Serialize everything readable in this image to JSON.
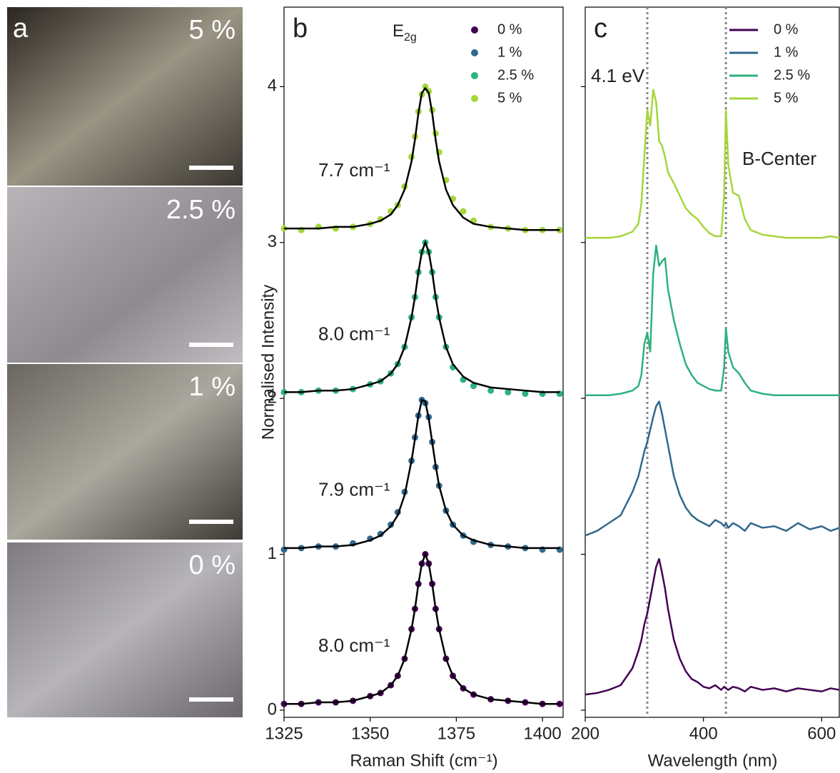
{
  "photos": {
    "panel_label": "a",
    "labels": [
      "5 %",
      "2.5 %",
      "1 %",
      "0 %"
    ]
  },
  "chart_data": [
    {
      "type": "scatter",
      "panel_label": "b",
      "xlabel": "Raman Shift (cm⁻¹)",
      "ylabel": "Normalised Intensity",
      "xlim": [
        1325,
        1406.2
      ],
      "xticks": [
        1325,
        1350,
        1375,
        1400
      ],
      "ylim": [
        -0.046,
        4.51
      ],
      "yticks": [
        0,
        1,
        2,
        3,
        4
      ],
      "legend": "upper right",
      "fit_color": "#000000",
      "peak_label": {
        "text": "E",
        "subscript": "2g"
      },
      "x": [
        1325,
        1330,
        1335,
        1340,
        1345,
        1350,
        1353,
        1356,
        1358,
        1360,
        1362,
        1363,
        1364,
        1365,
        1366,
        1367,
        1368,
        1369,
        1370,
        1372,
        1374,
        1377,
        1380,
        1385,
        1390,
        1395,
        1400,
        1405
      ],
      "series": [
        {
          "name": "0 %",
          "color": "#440154",
          "fwhm_label": "8.0 cm⁻¹",
          "values": [
            0.04,
            0.04,
            0.05,
            0.05,
            0.06,
            0.09,
            0.11,
            0.16,
            0.22,
            0.33,
            0.52,
            0.65,
            0.81,
            0.94,
            1.0,
            0.94,
            0.81,
            0.65,
            0.52,
            0.33,
            0.22,
            0.14,
            0.1,
            0.07,
            0.06,
            0.05,
            0.04,
            0.04
          ],
          "fit": [
            0.04,
            0.04,
            0.05,
            0.05,
            0.06,
            0.09,
            0.11,
            0.16,
            0.22,
            0.33,
            0.52,
            0.65,
            0.81,
            0.94,
            1.0,
            0.94,
            0.81,
            0.65,
            0.52,
            0.33,
            0.22,
            0.14,
            0.1,
            0.07,
            0.06,
            0.05,
            0.04,
            0.04
          ]
        },
        {
          "name": "1 %",
          "color": "#31688e",
          "fwhm_label": "7.9 cm⁻¹",
          "values": [
            1.03,
            1.04,
            1.05,
            1.05,
            1.07,
            1.1,
            1.13,
            1.19,
            1.27,
            1.4,
            1.6,
            1.75,
            1.89,
            1.99,
            1.97,
            1.88,
            1.72,
            1.56,
            1.44,
            1.28,
            1.19,
            1.12,
            1.08,
            1.06,
            1.05,
            1.04,
            1.03,
            1.03
          ],
          "fit": [
            1.04,
            1.04,
            1.05,
            1.05,
            1.06,
            1.09,
            1.12,
            1.18,
            1.25,
            1.38,
            1.6,
            1.74,
            1.89,
            1.99,
            1.98,
            1.87,
            1.72,
            1.57,
            1.44,
            1.28,
            1.19,
            1.12,
            1.09,
            1.06,
            1.05,
            1.04,
            1.04,
            1.04
          ]
        },
        {
          "name": "2.5 %",
          "color": "#2db27d",
          "fwhm_label": "8.0 cm⁻¹",
          "values": [
            2.04,
            2.04,
            2.05,
            2.05,
            2.06,
            2.09,
            2.11,
            2.16,
            2.22,
            2.33,
            2.52,
            2.65,
            2.81,
            2.94,
            3.0,
            2.94,
            2.81,
            2.65,
            2.52,
            2.33,
            2.2,
            2.12,
            2.08,
            2.05,
            2.04,
            2.03,
            2.03,
            2.03
          ],
          "fit": [
            2.04,
            2.04,
            2.05,
            2.05,
            2.06,
            2.09,
            2.11,
            2.16,
            2.22,
            2.33,
            2.52,
            2.65,
            2.81,
            2.94,
            3.0,
            2.94,
            2.81,
            2.65,
            2.52,
            2.33,
            2.22,
            2.14,
            2.1,
            2.07,
            2.06,
            2.05,
            2.04,
            2.04
          ]
        },
        {
          "name": "5 %",
          "color": "#a5d63a",
          "fwhm_label": "7.7 cm⁻¹",
          "values": [
            3.09,
            3.08,
            3.1,
            3.09,
            3.1,
            3.12,
            3.15,
            3.2,
            3.24,
            3.36,
            3.55,
            3.68,
            3.84,
            3.95,
            4.0,
            3.97,
            3.85,
            3.7,
            3.58,
            3.4,
            3.28,
            3.2,
            3.14,
            3.1,
            3.09,
            3.08,
            3.08,
            3.08
          ],
          "fit": [
            3.09,
            3.09,
            3.09,
            3.1,
            3.1,
            3.12,
            3.14,
            3.18,
            3.24,
            3.34,
            3.52,
            3.66,
            3.83,
            3.96,
            3.99,
            3.96,
            3.83,
            3.66,
            3.52,
            3.34,
            3.24,
            3.16,
            3.12,
            3.1,
            3.09,
            3.08,
            3.08,
            3.08
          ]
        }
      ]
    },
    {
      "type": "line",
      "panel_label": "c",
      "xlabel": "Wavelength (nm)",
      "xlim": [
        200,
        631
      ],
      "xticks": [
        200,
        400,
        600
      ],
      "ylim": [
        -0.046,
        4.51
      ],
      "yticks": [
        0,
        1,
        2,
        3,
        4
      ],
      "show_ytick_labels": false,
      "legend": "upper right",
      "vlines": [
        {
          "value": 305,
          "label": "4.1 eV"
        },
        {
          "value": 438,
          "label": "B-Center"
        }
      ],
      "x": [
        200,
        220,
        240,
        260,
        280,
        290,
        295,
        300,
        305,
        310,
        315,
        320,
        325,
        330,
        335,
        340,
        350,
        360,
        370,
        380,
        390,
        400,
        410,
        420,
        430,
        435,
        438,
        442,
        450,
        460,
        470,
        480,
        500,
        520,
        540,
        560,
        580,
        600,
        615,
        630
      ],
      "series": [
        {
          "name": "0 %",
          "color": "#440154",
          "values": [
            0.1,
            0.11,
            0.13,
            0.16,
            0.27,
            0.38,
            0.45,
            0.55,
            0.62,
            0.72,
            0.82,
            0.92,
            0.97,
            0.88,
            0.78,
            0.65,
            0.45,
            0.33,
            0.25,
            0.2,
            0.18,
            0.15,
            0.14,
            0.16,
            0.13,
            0.15,
            0.14,
            0.13,
            0.15,
            0.14,
            0.12,
            0.15,
            0.13,
            0.14,
            0.12,
            0.14,
            0.13,
            0.12,
            0.14,
            0.13
          ]
        },
        {
          "name": "1 %",
          "color": "#31688e",
          "values": [
            1.12,
            1.15,
            1.2,
            1.25,
            1.4,
            1.5,
            1.58,
            1.66,
            1.72,
            1.8,
            1.88,
            1.95,
            1.98,
            1.9,
            1.8,
            1.7,
            1.5,
            1.38,
            1.3,
            1.25,
            1.22,
            1.2,
            1.18,
            1.22,
            1.2,
            1.18,
            1.2,
            1.17,
            1.2,
            1.18,
            1.15,
            1.2,
            1.17,
            1.18,
            1.15,
            1.2,
            1.16,
            1.18,
            1.15,
            1.17
          ]
        },
        {
          "name": "2.5 %",
          "color": "#2db27d",
          "values": [
            2.02,
            2.02,
            2.02,
            2.03,
            2.05,
            2.08,
            2.15,
            2.35,
            2.42,
            2.3,
            2.8,
            2.98,
            2.85,
            2.88,
            2.9,
            2.7,
            2.5,
            2.35,
            2.22,
            2.15,
            2.1,
            2.08,
            2.06,
            2.05,
            2.05,
            2.2,
            2.45,
            2.3,
            2.2,
            2.16,
            2.1,
            2.05,
            2.03,
            2.02,
            2.02,
            2.02,
            2.02,
            2.02,
            2.02,
            2.02
          ]
        },
        {
          "name": "5 %",
          "color": "#a5d63a",
          "values": [
            3.03,
            3.03,
            3.03,
            3.04,
            3.07,
            3.12,
            3.25,
            3.55,
            3.85,
            3.75,
            3.98,
            3.9,
            3.65,
            3.62,
            3.55,
            3.45,
            3.38,
            3.3,
            3.22,
            3.18,
            3.15,
            3.1,
            3.06,
            3.04,
            3.04,
            3.3,
            3.85,
            3.5,
            3.32,
            3.3,
            3.15,
            3.08,
            3.05,
            3.04,
            3.03,
            3.03,
            3.03,
            3.03,
            3.04,
            3.03
          ]
        }
      ]
    }
  ]
}
